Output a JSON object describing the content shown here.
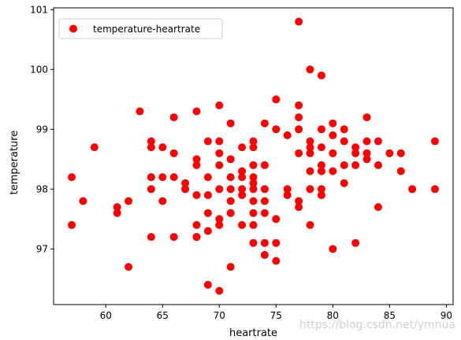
{
  "chart_data": {
    "type": "scatter",
    "xlabel": "heartrate",
    "ylabel": "temperature",
    "xlim": [
      55.4,
      90.6
    ],
    "ylim": [
      96.07,
      101.03
    ],
    "xticks": [
      60,
      65,
      70,
      75,
      80,
      85,
      90
    ],
    "yticks": [
      97,
      98,
      99,
      100,
      101
    ],
    "grid": false,
    "legend_position": "top-left",
    "series": [
      {
        "name": "temperature-heartrate",
        "color": "#ff0000",
        "x": [
          57,
          57,
          58,
          59,
          61,
          61,
          62,
          62,
          63,
          64,
          64,
          64,
          64,
          64,
          64,
          65,
          65,
          65,
          66,
          66,
          66,
          66,
          67,
          67,
          68,
          68,
          68,
          68,
          68,
          68,
          68,
          69,
          69,
          69,
          69,
          69,
          69,
          70,
          70,
          70,
          70,
          70,
          70,
          70,
          70,
          71,
          71,
          71,
          71,
          71,
          71,
          71,
          72,
          72,
          72,
          72,
          72,
          72,
          73,
          73,
          73,
          73,
          73,
          73,
          73,
          73,
          73,
          73,
          74,
          74,
          74,
          74,
          74,
          74,
          74,
          75,
          75,
          75,
          75,
          75,
          76,
          76,
          76,
          77,
          77,
          77,
          77,
          77,
          77,
          77,
          78,
          78,
          78,
          78,
          78,
          78,
          78,
          79,
          79,
          79,
          79,
          79,
          79,
          79,
          79,
          80,
          80,
          80,
          80,
          80,
          81,
          81,
          81,
          81,
          82,
          82,
          82,
          82,
          83,
          83,
          83,
          83,
          84,
          84,
          84,
          85,
          86,
          86,
          87,
          89,
          89
        ],
        "y": [
          98.2,
          97.4,
          97.8,
          98.7,
          97.7,
          97.6,
          96.7,
          97.8,
          99.3,
          98.8,
          98.7,
          98.2,
          98.0,
          98.2,
          97.2,
          98.7,
          98.2,
          97.8,
          99.2,
          98.6,
          98.2,
          97.2,
          98.1,
          98.0,
          99.3,
          98.5,
          98.4,
          97.9,
          97.4,
          97.2,
          97.2,
          98.8,
          98.2,
          97.9,
          97.6,
          97.3,
          96.4,
          99.4,
          98.8,
          98.6,
          98.4,
          98.0,
          97.5,
          97.4,
          96.3,
          99.1,
          98.5,
          98.2,
          98.0,
          97.8,
          97.6,
          96.7,
          98.7,
          98.3,
          98.2,
          98.0,
          97.9,
          97.4,
          98.8,
          98.7,
          98.4,
          98.2,
          98.1,
          98.0,
          97.8,
          97.6,
          97.4,
          97.1,
          99.1,
          98.4,
          98.0,
          97.8,
          97.6,
          97.1,
          96.9,
          99.5,
          99.0,
          97.5,
          97.1,
          96.8,
          98.9,
          98.0,
          97.9,
          100.8,
          99.4,
          99.2,
          99.0,
          98.6,
          97.8,
          97.7,
          100.0,
          98.8,
          98.7,
          98.6,
          98.3,
          98.0,
          97.4,
          99.9,
          99.0,
          98.7,
          98.4,
          98.3,
          98.3,
          98.0,
          97.9,
          99.1,
          98.9,
          98.6,
          98.3,
          97.0,
          99.0,
          98.8,
          98.4,
          98.1,
          98.7,
          98.6,
          98.4,
          97.1,
          99.2,
          98.8,
          98.6,
          98.5,
          98.8,
          98.4,
          97.7,
          98.6,
          98.6,
          98.3,
          98.0,
          98.8,
          98.0
        ]
      }
    ]
  },
  "watermark": "https://blog.csdn.net/ymnua"
}
